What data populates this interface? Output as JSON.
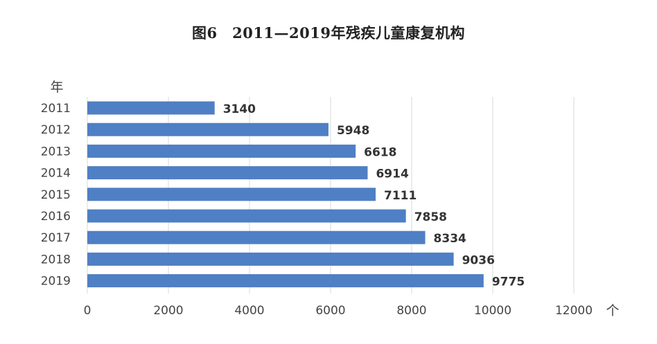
{
  "chart_data": {
    "type": "bar",
    "orientation": "horizontal",
    "title": "图6　2011—2019年残疾儿童康复机构",
    "ylabel": "年",
    "xlabel": "个",
    "categories": [
      "2011",
      "2012",
      "2013",
      "2014",
      "2015",
      "2016",
      "2017",
      "2018",
      "2019"
    ],
    "values": [
      3140,
      5948,
      6618,
      6914,
      7111,
      7858,
      8334,
      9036,
      9775
    ],
    "xlim": [
      0,
      12000
    ],
    "xticks": [
      "0",
      "2000",
      "4000",
      "6000",
      "8000",
      "10000",
      "12000"
    ],
    "grid": "vertical",
    "bar_color": "#4f7fc4"
  }
}
